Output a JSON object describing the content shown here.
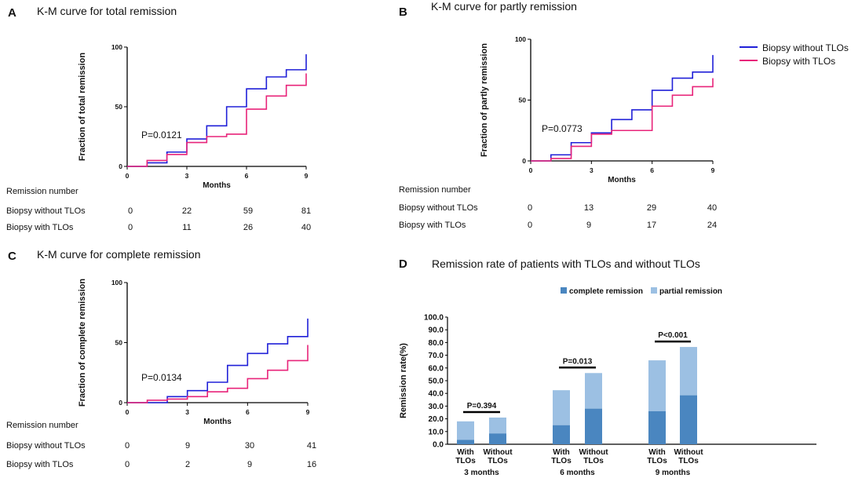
{
  "colors": {
    "without": "#2020d8",
    "with": "#e8247a",
    "complete": "#4a86c0",
    "partial": "#9cc0e3",
    "axis": "#000000"
  },
  "chart_data": [
    {
      "panel": "A",
      "type": "line",
      "title": "K-M curve for total remission",
      "xlabel": "Months",
      "ylabel": "Fraction of total remission",
      "xlim": [
        0,
        9
      ],
      "ylim": [
        0,
        100
      ],
      "xticks": [
        "0",
        "3",
        "6",
        "9"
      ],
      "yticks": [
        "0",
        "50",
        "100"
      ],
      "pvalue": "P=0.0121",
      "series": [
        {
          "name": "Biopsy without TLOs",
          "color_key": "without",
          "steps": [
            [
              0,
              0
            ],
            [
              1,
              3
            ],
            [
              2,
              12
            ],
            [
              3,
              23
            ],
            [
              4,
              34
            ],
            [
              5,
              50
            ],
            [
              6,
              65
            ],
            [
              7,
              75
            ],
            [
              8,
              81
            ],
            [
              9,
              81
            ],
            [
              9,
              94
            ]
          ]
        },
        {
          "name": "Biopsy with TLOs",
          "color_key": "with",
          "steps": [
            [
              0,
              0
            ],
            [
              1,
              5
            ],
            [
              2,
              10
            ],
            [
              3,
              20
            ],
            [
              4,
              25
            ],
            [
              5,
              27
            ],
            [
              6,
              48
            ],
            [
              7,
              59
            ],
            [
              8,
              68
            ],
            [
              9,
              68
            ],
            [
              9,
              78
            ]
          ]
        }
      ],
      "risk_table": {
        "header": "Remission number",
        "rows": [
          {
            "label": "Biopsy without TLOs",
            "values": [
              "0",
              "22",
              "59",
              "81"
            ]
          },
          {
            "label": "Biopsy with TLOs",
            "values": [
              "0",
              "11",
              "26",
              "40"
            ]
          }
        ]
      }
    },
    {
      "panel": "B",
      "type": "line",
      "title": "K-M curve for partly remission",
      "xlabel": "Months",
      "ylabel": "Fraction of partly remission",
      "xlim": [
        0,
        9
      ],
      "ylim": [
        0,
        100
      ],
      "xticks": [
        "0",
        "3",
        "6",
        "9"
      ],
      "yticks": [
        "0",
        "50",
        "100"
      ],
      "pvalue": "P=0.0773",
      "series": [
        {
          "name": "Biopsy without TLOs",
          "color_key": "without",
          "steps": [
            [
              0,
              0
            ],
            [
              1,
              5
            ],
            [
              2,
              15
            ],
            [
              3,
              23
            ],
            [
              4,
              34
            ],
            [
              5,
              42
            ],
            [
              6,
              58
            ],
            [
              7,
              68
            ],
            [
              8,
              73
            ],
            [
              9,
              73
            ],
            [
              9,
              87
            ]
          ]
        },
        {
          "name": "Biopsy with TLOs",
          "color_key": "with",
          "steps": [
            [
              0,
              0
            ],
            [
              1,
              2
            ],
            [
              2,
              12
            ],
            [
              3,
              22
            ],
            [
              4,
              25
            ],
            [
              5,
              25
            ],
            [
              6,
              45
            ],
            [
              7,
              54
            ],
            [
              8,
              61
            ],
            [
              9,
              61
            ],
            [
              9,
              68
            ]
          ]
        }
      ],
      "risk_table": {
        "header": "Remission number",
        "rows": [
          {
            "label": "Biopsy without TLOs",
            "values": [
              "0",
              "13",
              "29",
              "40"
            ]
          },
          {
            "label": "Biopsy with TLOs",
            "values": [
              "0",
              "9",
              "17",
              "24"
            ]
          }
        ]
      }
    },
    {
      "panel": "C",
      "type": "line",
      "title": "K-M curve for complete remission",
      "xlabel": "Months",
      "ylabel": "Fraction of complete remission",
      "xlim": [
        0,
        9
      ],
      "ylim": [
        0,
        100
      ],
      "xticks": [
        "0",
        "3",
        "6",
        "9"
      ],
      "yticks": [
        "0",
        "50",
        "100"
      ],
      "pvalue": "P=0.0134",
      "series": [
        {
          "name": "Biopsy without TLOs",
          "color_key": "without",
          "steps": [
            [
              0,
              0
            ],
            [
              2,
              5
            ],
            [
              3,
              10
            ],
            [
              4,
              17
            ],
            [
              5,
              31
            ],
            [
              6,
              41
            ],
            [
              7,
              49
            ],
            [
              8,
              55
            ],
            [
              9,
              55
            ],
            [
              9,
              70
            ]
          ]
        },
        {
          "name": "Biopsy with TLOs",
          "color_key": "with",
          "steps": [
            [
              0,
              0
            ],
            [
              1,
              2
            ],
            [
              2,
              3
            ],
            [
              3,
              5
            ],
            [
              4,
              9
            ],
            [
              5,
              12
            ],
            [
              6,
              20
            ],
            [
              7,
              27
            ],
            [
              8,
              35
            ],
            [
              9,
              35
            ],
            [
              9,
              48
            ]
          ]
        }
      ],
      "risk_table": {
        "header": "Remission number",
        "rows": [
          {
            "label": "Biopsy without TLOs",
            "values": [
              "0",
              "9",
              "30",
              "41"
            ]
          },
          {
            "label": "Biopsy with TLOs",
            "values": [
              "0",
              "2",
              "9",
              "16"
            ]
          }
        ]
      }
    },
    {
      "panel": "D",
      "type": "bar",
      "stacked": true,
      "title": "Remission rate of patients with TLOs and without TLOs",
      "ylabel": "Remission rate(%)",
      "ylim": [
        0,
        100
      ],
      "yticks": [
        "0.0",
        "10.0",
        "20.0",
        "30.0",
        "40.0",
        "50.0",
        "60.0",
        "70.0",
        "80.0",
        "90.0",
        "100.0"
      ],
      "legend": [
        "complete remission",
        "partial remission"
      ],
      "groups": [
        {
          "label": "3 months",
          "pvalue": "P=0.394",
          "bars": [
            {
              "line1": "With",
              "line2": "TLOs",
              "complete": 3.5,
              "total": 18
            },
            {
              "line1": "Without",
              "line2": "TLOs",
              "complete": 8.5,
              "total": 21
            }
          ]
        },
        {
          "label": "6 months",
          "pvalue": "P=0.013",
          "bars": [
            {
              "line1": "With",
              "line2": "TLOs",
              "complete": 15,
              "total": 42.5
            },
            {
              "line1": "Without",
              "line2": "TLOs",
              "complete": 28,
              "total": 56
            }
          ]
        },
        {
          "label": "9 months",
          "pvalue": "P<0.001",
          "bars": [
            {
              "line1": "With",
              "line2": "TLOs",
              "complete": 26,
              "total": 66
            },
            {
              "line1": "Without",
              "line2": "TLOs",
              "complete": 38.5,
              "total": 76.5
            }
          ]
        }
      ]
    }
  ],
  "legend_km": [
    {
      "label": "Biopsy without TLOs",
      "color_key": "without"
    },
    {
      "label": "Biopsy with TLOs",
      "color_key": "with"
    }
  ]
}
